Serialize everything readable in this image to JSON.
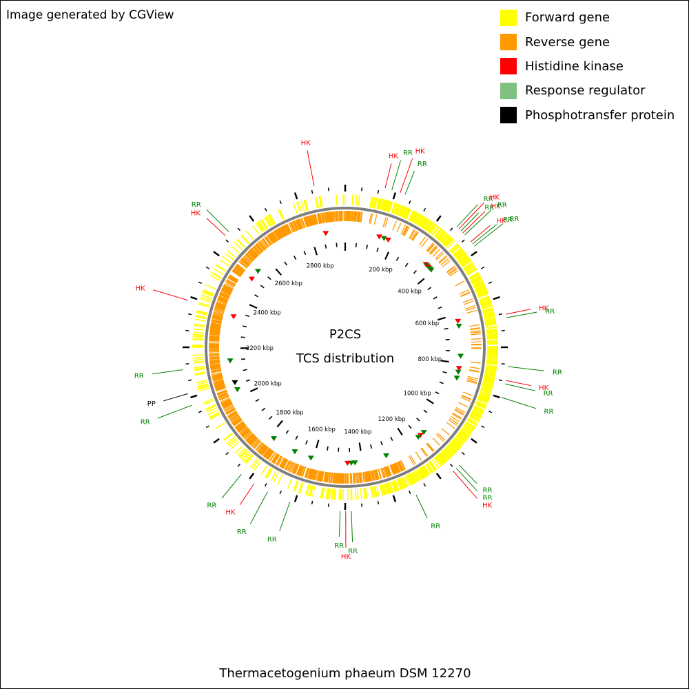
{
  "credit": "Image generated by CGView",
  "legend": [
    {
      "label": "Forward gene",
      "color": "#ffff00"
    },
    {
      "label": "Reverse gene",
      "color": "#ff9900"
    },
    {
      "label": "Histidine kinase",
      "color": "#ff0000"
    },
    {
      "label": "Response regulator",
      "color": "#80c080"
    },
    {
      "label": "Phosphotransfer protein",
      "color": "#000000"
    }
  ],
  "map": {
    "title_line1": "P2CS",
    "title_line2": "TCS distribution",
    "genome_size_kbp": 2939,
    "colors": {
      "forward": "#ffff00",
      "reverse": "#ff9900",
      "HK": "#ff0000",
      "RR": "#008000",
      "PP": "#000000",
      "backbone": "#7f7f7f"
    },
    "ticks": [
      "200 kbp",
      "400 kbp",
      "600 kbp",
      "800 kbp",
      "1000 kbp",
      "1200 kbp",
      "1400 kbp",
      "1600 kbp",
      "1800 kbp",
      "2000 kbp",
      "2200 kbp",
      "2400 kbp",
      "2600 kbp",
      "2800 kbp"
    ],
    "gene_labels": [
      {
        "text": "HK",
        "type": "HK",
        "pos_kbp": 115
      },
      {
        "text": "RR",
        "type": "RR",
        "pos_kbp": 135
      },
      {
        "text": "HK",
        "type": "HK",
        "pos_kbp": 160
      },
      {
        "text": "RR",
        "type": "RR",
        "pos_kbp": 175
      },
      {
        "text": "RR",
        "type": "RR",
        "pos_kbp": 350
      },
      {
        "text": "HK",
        "type": "HK",
        "pos_kbp": 358
      },
      {
        "text": "RR",
        "type": "RR",
        "pos_kbp": 366
      },
      {
        "text": "HK",
        "type": "HK",
        "pos_kbp": 374
      },
      {
        "text": "RR",
        "type": "RR",
        "pos_kbp": 382
      },
      {
        "text": "HK",
        "type": "HK",
        "pos_kbp": 408
      },
      {
        "text": "RR",
        "type": "RR",
        "pos_kbp": 416
      },
      {
        "text": "RR",
        "type": "RR",
        "pos_kbp": 424
      },
      {
        "text": "HK",
        "type": "HK",
        "pos_kbp": 640
      },
      {
        "text": "RR",
        "type": "RR",
        "pos_kbp": 650
      },
      {
        "text": "RR",
        "type": "RR",
        "pos_kbp": 790
      },
      {
        "text": "HK",
        "type": "HK",
        "pos_kbp": 830
      },
      {
        "text": "RR",
        "type": "RR",
        "pos_kbp": 840
      },
      {
        "text": "RR",
        "type": "RR",
        "pos_kbp": 880
      },
      {
        "text": "RR",
        "type": "RR",
        "pos_kbp": 1110
      },
      {
        "text": "RR",
        "type": "RR",
        "pos_kbp": 1122
      },
      {
        "text": "HK",
        "type": "HK",
        "pos_kbp": 1134
      },
      {
        "text": "RR",
        "type": "RR",
        "pos_kbp": 1260
      },
      {
        "text": "RR",
        "type": "RR",
        "pos_kbp": 1452
      },
      {
        "text": "HK",
        "type": "HK",
        "pos_kbp": 1468
      },
      {
        "text": "RR",
        "type": "RR",
        "pos_kbp": 1484
      },
      {
        "text": "RR",
        "type": "RR",
        "pos_kbp": 1630
      },
      {
        "text": "RR",
        "type": "RR",
        "pos_kbp": 1700
      },
      {
        "text": "HK",
        "type": "HK",
        "pos_kbp": 1745
      },
      {
        "text": "RR",
        "type": "RR",
        "pos_kbp": 1790
      },
      {
        "text": "RR",
        "type": "RR",
        "pos_kbp": 2035
      },
      {
        "text": "PP",
        "type": "PP",
        "pos_kbp": 2070
      },
      {
        "text": "RR",
        "type": "RR",
        "pos_kbp": 2140
      },
      {
        "text": "HK",
        "type": "HK",
        "pos_kbp": 2340
      },
      {
        "text": "HK",
        "type": "HK",
        "pos_kbp": 2555
      },
      {
        "text": "RR",
        "type": "RR",
        "pos_kbp": 2570
      },
      {
        "text": "HK",
        "type": "HK",
        "pos_kbp": 2850
      }
    ],
    "markers": [
      {
        "type": "HK",
        "pos_kbp": 140
      },
      {
        "type": "RR",
        "pos_kbp": 160
      },
      {
        "type": "HK",
        "pos_kbp": 178
      },
      {
        "type": "HK",
        "pos_kbp": 360
      },
      {
        "type": "RR",
        "pos_kbp": 368
      },
      {
        "type": "HK",
        "pos_kbp": 376
      },
      {
        "type": "RR",
        "pos_kbp": 384
      },
      {
        "type": "RR",
        "pos_kbp": 392
      },
      {
        "type": "HK",
        "pos_kbp": 628
      },
      {
        "type": "RR",
        "pos_kbp": 648
      },
      {
        "type": "RR",
        "pos_kbp": 770
      },
      {
        "type": "HK",
        "pos_kbp": 820
      },
      {
        "type": "RR",
        "pos_kbp": 835
      },
      {
        "type": "RR",
        "pos_kbp": 860
      },
      {
        "type": "RR",
        "pos_kbp": 1120
      },
      {
        "type": "HK",
        "pos_kbp": 1138
      },
      {
        "type": "RR",
        "pos_kbp": 1150
      },
      {
        "type": "RR",
        "pos_kbp": 1300
      },
      {
        "type": "RR",
        "pos_kbp": 1430
      },
      {
        "type": "RR",
        "pos_kbp": 1445
      },
      {
        "type": "HK",
        "pos_kbp": 1460
      },
      {
        "type": "RR",
        "pos_kbp": 1610
      },
      {
        "type": "RR",
        "pos_kbp": 1680
      },
      {
        "type": "RR",
        "pos_kbp": 1780
      },
      {
        "type": "RR",
        "pos_kbp": 2030
      },
      {
        "type": "PP",
        "pos_kbp": 2060
      },
      {
        "type": "RR",
        "pos_kbp": 2150
      },
      {
        "type": "HK",
        "pos_kbp": 2330
      },
      {
        "type": "HK",
        "pos_kbp": 2500
      },
      {
        "type": "RR",
        "pos_kbp": 2540
      },
      {
        "type": "HK",
        "pos_kbp": 2860
      }
    ]
  },
  "footer": "Thermacetogenium phaeum DSM 12270"
}
